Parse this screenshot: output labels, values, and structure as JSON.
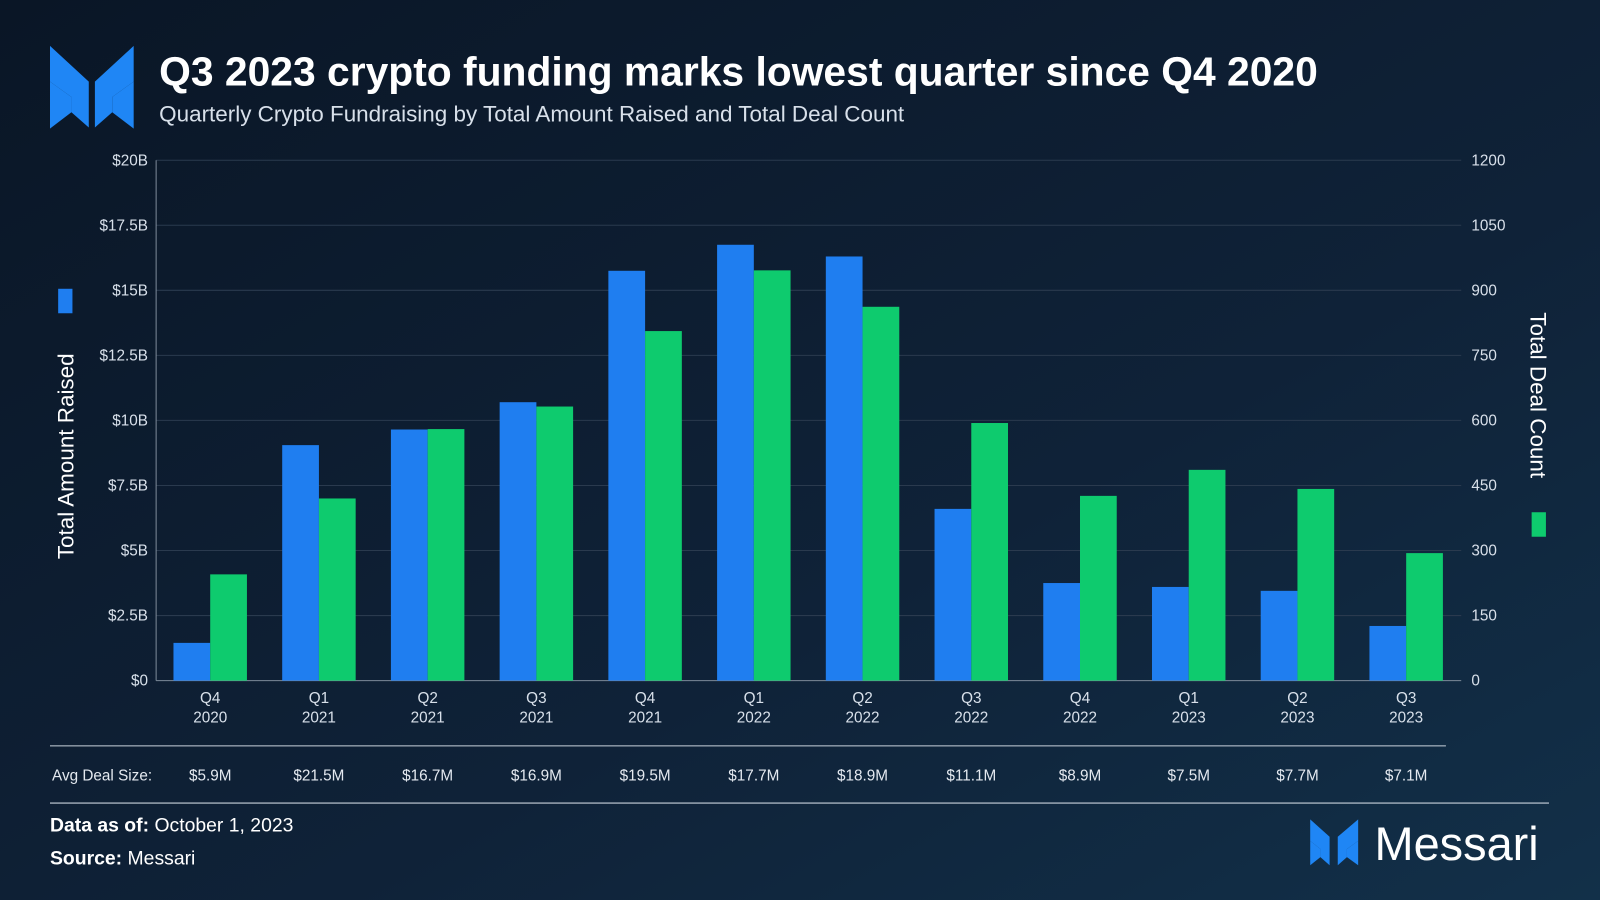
{
  "header": {
    "title": "Q3 2023 crypto funding marks lowest quarter since Q4 2020",
    "subtitle": "Quarterly Crypto Fundraising by Total Amount Raised and Total Deal Count"
  },
  "colors": {
    "background": "#0c1b2e",
    "amount_series": "#1f7ef0",
    "deal_series": "#0ecb6e",
    "grid": "#2a3a4e"
  },
  "chart_data": {
    "type": "bar",
    "title": "Q3 2023 crypto funding marks lowest quarter since Q4 2020",
    "subtitle": "Quarterly Crypto Fundraising by Total Amount Raised and Total Deal Count",
    "categories": [
      [
        "Q4",
        "2020"
      ],
      [
        "Q1",
        "2021"
      ],
      [
        "Q2",
        "2021"
      ],
      [
        "Q3",
        "2021"
      ],
      [
        "Q4",
        "2021"
      ],
      [
        "Q1",
        "2022"
      ],
      [
        "Q2",
        "2022"
      ],
      [
        "Q3",
        "2022"
      ],
      [
        "Q4",
        "2022"
      ],
      [
        "Q1",
        "2023"
      ],
      [
        "Q2",
        "2023"
      ],
      [
        "Q3",
        "2023"
      ]
    ],
    "ylabel_left": "Total Amount Raised",
    "ylabel_right": "Total Deal Count",
    "ylim_left": [
      0,
      20
    ],
    "ylim_right": [
      0,
      1200
    ],
    "left_ticks": [
      "$0",
      "$2.5B",
      "$5B",
      "$7.5B",
      "$10B",
      "$12.5B",
      "$15B",
      "$17.5B",
      "$20B"
    ],
    "right_ticks": [
      "0",
      "150",
      "300",
      "450",
      "600",
      "750",
      "900",
      "1050",
      "1200"
    ],
    "grid": true,
    "series": [
      {
        "axis": "left",
        "unit": "USD billions",
        "color": "#1f7ef0",
        "values": [
          1.45,
          9.05,
          9.65,
          10.7,
          15.75,
          16.75,
          16.3,
          6.6,
          3.75,
          3.6,
          3.45,
          2.1
        ]
      },
      {
        "axis": "right",
        "unit": "deals",
        "color": "#0ecb6e",
        "values": [
          245,
          420,
          580,
          632,
          806,
          946,
          862,
          594,
          426,
          486,
          442,
          294
        ]
      }
    ],
    "avg_deal_size_label": "Avg Deal Size:",
    "avg_deal_size": [
      "$5.9M",
      "$21.5M",
      "$16.7M",
      "$16.9M",
      "$19.5M",
      "$17.7M",
      "$18.9M",
      "$11.1M",
      "$8.9M",
      "$7.5M",
      "$7.7M",
      "$7.1M"
    ]
  },
  "footer": {
    "data_as_of_label": "Data as of:",
    "data_as_of": "October 1, 2023",
    "source_label": "Source:",
    "source": "Messari",
    "brand": "Messari"
  }
}
